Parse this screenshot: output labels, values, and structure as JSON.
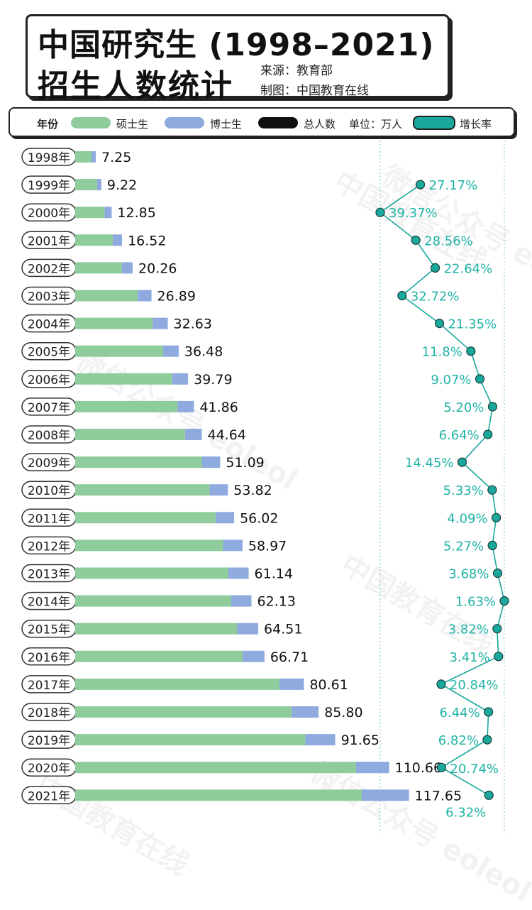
{
  "header": {
    "title_line1": "中国研究生 (1998–2021)",
    "title_line2": "招生人数统计",
    "source": "来源：教育部",
    "maker": "制图：中国教育在线"
  },
  "legend": {
    "year_label": "年份",
    "master_label": "硕士生",
    "doctor_label": "博士生",
    "total_label": "总人数",
    "unit_label": "单位：万人",
    "growth_label": "增长率"
  },
  "colors": {
    "master": "#8fcc9c",
    "doctor": "#8eaadf",
    "total": "#111111",
    "growth": "#1aa79c",
    "growth_text": "#20b3a6"
  },
  "chart_data": {
    "type": "bar",
    "orientation": "horizontal-stacked",
    "unit": "万人",
    "categories": [
      "1998年",
      "1999年",
      "2000年",
      "2001年",
      "2002年",
      "2003年",
      "2004年",
      "2005年",
      "2006年",
      "2007年",
      "2008年",
      "2009年",
      "2010年",
      "2011年",
      "2012年",
      "2013年",
      "2014年",
      "2015年",
      "2016年",
      "2017年",
      "2018年",
      "2019年",
      "2020年",
      "2021年"
    ],
    "totals": [
      7.25,
      9.22,
      12.85,
      16.52,
      20.26,
      26.89,
      32.63,
      36.48,
      39.79,
      41.86,
      44.64,
      51.09,
      53.82,
      56.02,
      58.97,
      61.14,
      62.13,
      64.51,
      66.71,
      80.61,
      85.8,
      91.65,
      110.66,
      117.65
    ],
    "total_labels": [
      "7.25",
      "9.22",
      "12.85",
      "16.52",
      "20.26",
      "26.89",
      "32.63",
      "36.48",
      "39.79",
      "41.86",
      "44.64",
      "51.09",
      "53.82",
      "56.02",
      "58.97",
      "61.14",
      "62.13",
      "64.51",
      "66.71",
      "80.61",
      "85.80",
      "91.65",
      "110.66",
      "117.65"
    ],
    "series": [
      {
        "name": "硕士生",
        "values": [
          5.75,
          7.72,
          10.35,
          13.22,
          16.46,
          22.02,
          27.3,
          31.0,
          34.2,
          36.06,
          38.7,
          44.7,
          47.4,
          49.46,
          52.13,
          54.0,
          55.0,
          57.0,
          59.0,
          72.0,
          76.3,
          81.1,
          99.0,
          101.0
        ]
      },
      {
        "name": "博士生",
        "values": [
          1.5,
          1.5,
          2.5,
          3.3,
          3.8,
          4.87,
          5.33,
          5.48,
          5.59,
          5.8,
          5.94,
          6.39,
          6.42,
          6.56,
          6.84,
          7.14,
          7.13,
          7.51,
          7.71,
          8.61,
          9.5,
          10.55,
          11.66,
          16.65
        ]
      }
    ],
    "growth": {
      "name": "增长率",
      "labels": [
        "27.17%",
        "39.37%",
        "28.56%",
        "22.64%",
        "32.72%",
        "21.35%",
        "11.8%",
        "9.07%",
        "5.20%",
        "6.64%",
        "14.45%",
        "5.33%",
        "4.09%",
        "5.27%",
        "3.68%",
        "1.63%",
        "3.82%",
        "3.41%",
        "20.84%",
        "6.44%",
        "6.82%",
        "20.74%",
        "6.32%"
      ],
      "values": [
        27.17,
        39.37,
        28.56,
        22.64,
        32.72,
        21.35,
        11.8,
        9.07,
        5.2,
        6.64,
        14.45,
        5.33,
        4.09,
        5.27,
        3.68,
        1.63,
        3.82,
        3.41,
        20.84,
        6.44,
        6.82,
        20.74,
        6.32
      ]
    }
  },
  "watermarks": [
    "中国教育在线",
    "微信公众号 eoleol",
    "中国教育在线",
    "微信公众号 eoleol",
    "中国教育在线",
    "微信公众号 eoleol"
  ]
}
